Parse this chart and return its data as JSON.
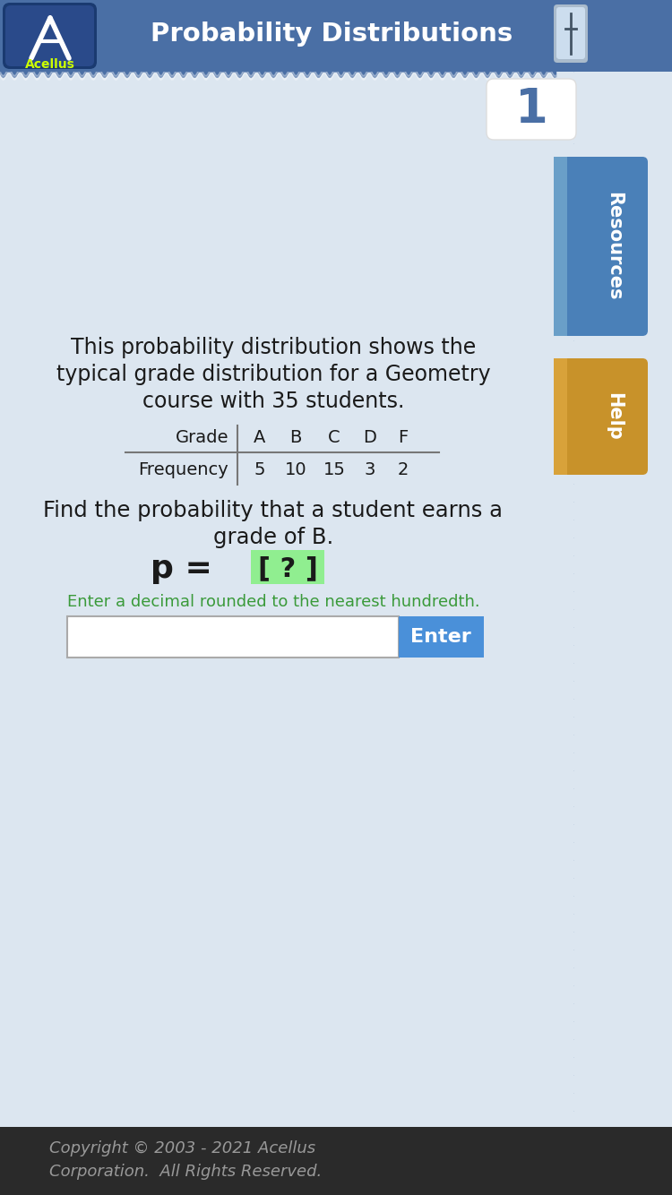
{
  "title": "Probability Distributions",
  "bg_color": "#dce6f0",
  "header_bg": "#4a6fa5",
  "header_text_color": "#ffffff",
  "header_title": "Probability Distributions",
  "body_text1": "This probability distribution shows the",
  "body_text2": "typical grade distribution for a Geometry",
  "body_text3": "course with 35 students.",
  "table_grades": [
    "A",
    "B",
    "C",
    "D",
    "F"
  ],
  "table_freq": [
    5,
    10,
    15,
    3,
    2
  ],
  "question_line1": "Find the probability that a student earns a",
  "question_line2": "grade of B.",
  "hint_text": "Enter a decimal rounded to the nearest hundredth.",
  "hint_color": "#3a9a3a",
  "enter_btn_color": "#4a90d9",
  "enter_btn_text": "Enter",
  "footer_text1": "Copyright © 2003 - 2021 Acellus",
  "footer_text2": "Corporation.  All Rights Reserved.",
  "footer_bg": "#2a2a2a",
  "footer_text_color": "#999999",
  "grid_line_color": "#c5d5e5",
  "sidebar_resources_color": "#4a80b8",
  "sidebar_help_color": "#c8922a",
  "number_label": "1",
  "number_color": "#4a6fa5",
  "acellus_logo_bg": "#1a3a70",
  "acellus_text_color": "#ccff00",
  "wavy_color": "#8899aa"
}
